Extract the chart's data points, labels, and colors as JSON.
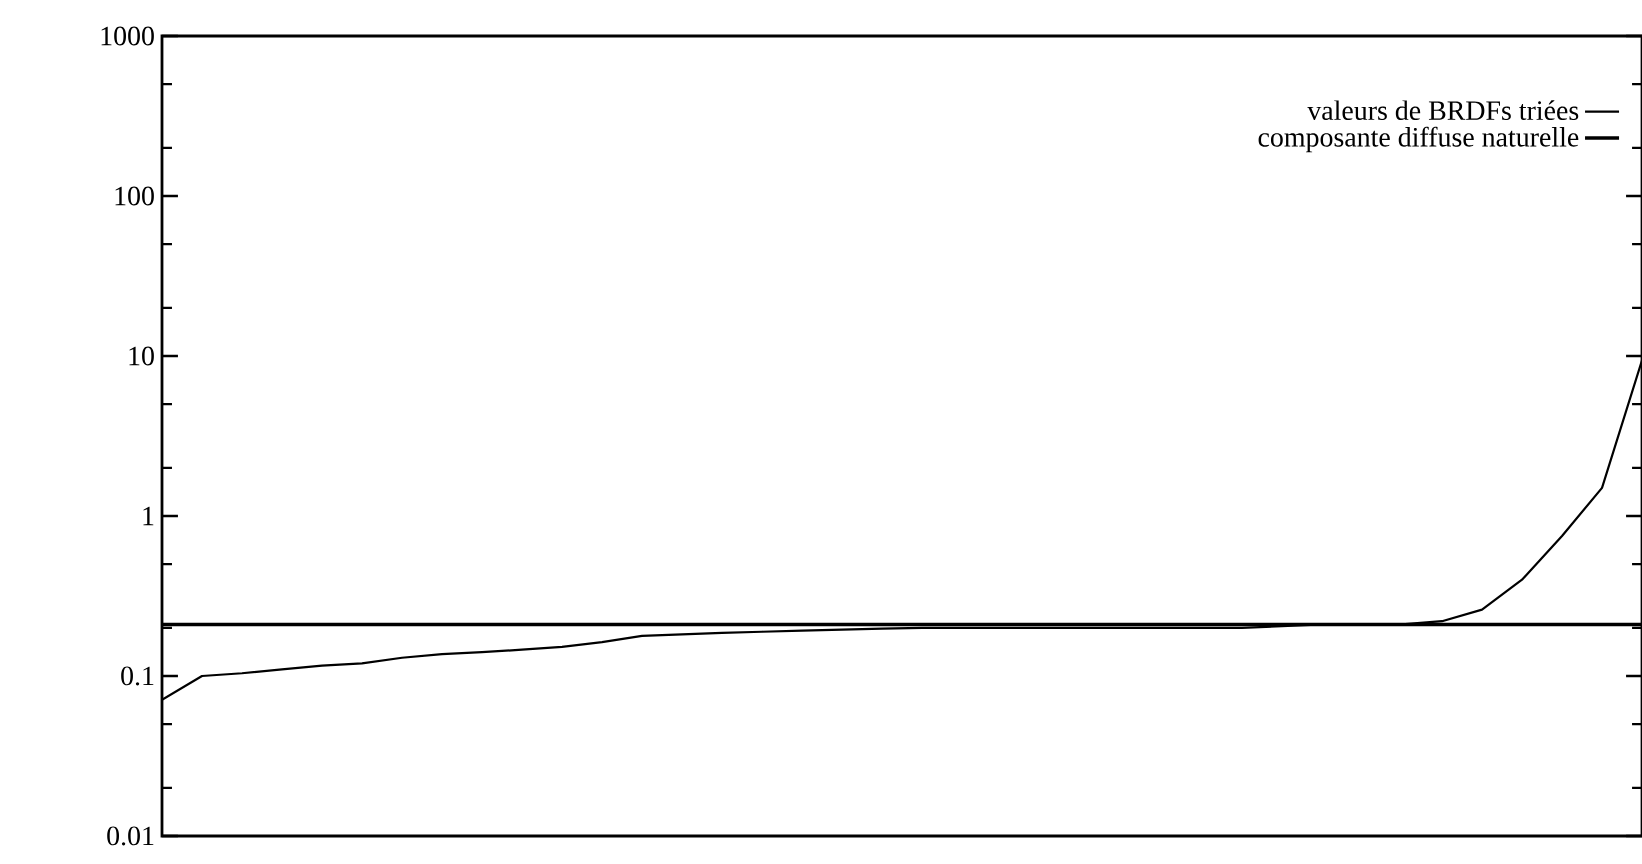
{
  "chart_data": {
    "type": "line",
    "categories": [
      null,
      null,
      null,
      null,
      null,
      null,
      null,
      null,
      null,
      null,
      null,
      null,
      null,
      null,
      null,
      null,
      null,
      null,
      null,
      null,
      null,
      null,
      null,
      null,
      null,
      null,
      null,
      null,
      null,
      null,
      null,
      null,
      null,
      null,
      null,
      null,
      null,
      null
    ],
    "series": [
      {
        "name": "valeurs de BRDFs triées",
        "color": "#000000",
        "values": [
          0.071,
          0.1,
          0.104,
          0.11,
          0.116,
          0.12,
          0.13,
          0.137,
          0.141,
          0.146,
          0.152,
          0.163,
          0.178,
          0.182,
          0.186,
          0.189,
          0.192,
          0.195,
          0.198,
          0.2,
          0.2,
          0.2,
          0.2,
          0.2,
          0.2,
          0.2,
          0.2,
          0.2,
          0.205,
          0.21,
          0.21,
          0.21,
          0.22,
          0.26,
          0.4,
          0.75,
          1.5,
          9.4
        ]
      },
      {
        "name": "composante diffuse naturelle",
        "color": "#000000",
        "values": [
          0.21,
          0.21,
          0.21,
          0.21,
          0.21,
          0.21,
          0.21,
          0.21,
          0.21,
          0.21,
          0.21,
          0.21,
          0.21,
          0.21,
          0.21,
          0.21,
          0.21,
          0.21,
          0.21,
          0.21,
          0.21,
          0.21,
          0.21,
          0.21,
          0.21,
          0.21,
          0.21,
          0.21,
          0.21,
          0.21,
          0.21,
          0.21,
          0.21,
          0.21,
          0.21,
          0.21,
          0.21,
          0.21
        ]
      }
    ],
    "log": true,
    "ylim": [
      0.01,
      1000
    ],
    "yticks": [
      0.01,
      0.1,
      1,
      10,
      100,
      1000
    ],
    "tick_labels": "y",
    "legend": "top right"
  }
}
